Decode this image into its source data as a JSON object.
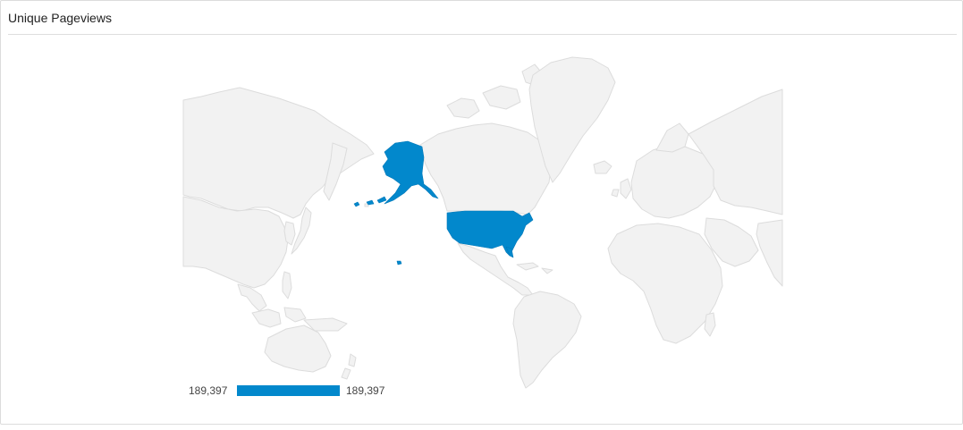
{
  "panel": {
    "title": "Unique Pageviews"
  },
  "map": {
    "region": "world",
    "highlighted_country": "United States",
    "colors": {
      "land": "#f2f2f2",
      "border": "#dcdcdc",
      "highlight": "#0288cc",
      "ocean": "#ffffff"
    },
    "data": [
      {
        "country": "United States",
        "value": 189397
      }
    ]
  },
  "legend": {
    "min_label": "189,397",
    "max_label": "189,397",
    "color": "#0288cc"
  }
}
